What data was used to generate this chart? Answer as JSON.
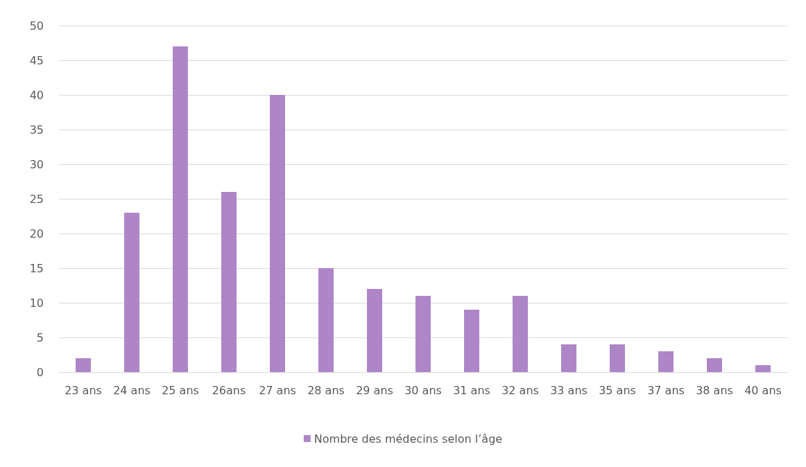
{
  "chart_data": {
    "type": "bar",
    "categories": [
      "23 ans",
      "24 ans",
      "25 ans",
      "26ans",
      "27 ans",
      "28 ans",
      "29 ans",
      "30 ans",
      "31 ans",
      "32 ans",
      "33 ans",
      "35 ans",
      "37 ans",
      "38 ans",
      "40 ans"
    ],
    "series": [
      {
        "name": "Nombre des médecins selon l’âge",
        "color": "#ae86c8",
        "values": [
          2,
          23,
          47,
          26,
          40,
          15,
          12,
          11,
          9,
          11,
          4,
          4,
          3,
          2,
          1
        ]
      }
    ],
    "ylim": [
      0,
      50
    ],
    "yticks": [
      0,
      5,
      10,
      15,
      20,
      25,
      30,
      35,
      40,
      45,
      50
    ],
    "grid": "y",
    "legend": "bottom"
  }
}
